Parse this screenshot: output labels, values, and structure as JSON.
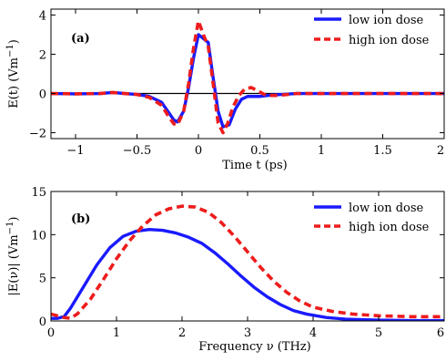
{
  "colors": {
    "low": "#1a1aff",
    "high": "#ee1c1c",
    "axis": "#000000",
    "background": "#ffffff"
  },
  "chart_data": [
    {
      "type": "line",
      "panel_label": "(a)",
      "xlabel": "Time t (ps)",
      "ylabel": "E(t) (Vm",
      "ylabel_sup": "−1",
      "ylabel_close": ")",
      "xlim": [
        -1.2,
        2.0
      ],
      "ylim": [
        -2.3,
        4.3
      ],
      "xticks": [
        -1,
        -0.5,
        0,
        0.5,
        1,
        1.5,
        2
      ],
      "xtick_labels": [
        "−1",
        "−0.5",
        "0",
        "0.5",
        "1",
        "1.5",
        "2"
      ],
      "yticks": [
        -2,
        0,
        2,
        4
      ],
      "ytick_labels": [
        "−2",
        "0",
        "2",
        "4"
      ],
      "zero_line": true,
      "grid": false,
      "legend_position": "top-right",
      "series": [
        {
          "name": "low ion dose",
          "color": "#1a1aff",
          "style": "solid",
          "x": [
            -1.2,
            -1.0,
            -0.8,
            -0.7,
            -0.6,
            -0.5,
            -0.4,
            -0.3,
            -0.25,
            -0.2,
            -0.17,
            -0.12,
            -0.08,
            -0.04,
            0.0,
            0.04,
            0.08,
            0.12,
            0.16,
            0.2,
            0.25,
            0.3,
            0.35,
            0.4,
            0.5,
            0.6,
            0.8,
            1.0,
            1.2,
            1.5,
            1.8,
            2.0
          ],
          "y": [
            0.0,
            -0.02,
            0.0,
            0.05,
            0.0,
            -0.05,
            -0.15,
            -0.45,
            -0.9,
            -1.35,
            -1.45,
            -0.9,
            0.3,
            1.8,
            3.0,
            2.8,
            2.6,
            0.8,
            -0.9,
            -1.7,
            -1.6,
            -0.8,
            -0.3,
            -0.15,
            -0.15,
            -0.08,
            0.0,
            0.0,
            0.0,
            0.0,
            0.0,
            0.0
          ]
        },
        {
          "name": "high ion dose",
          "color": "#ee1c1c",
          "style": "dashed",
          "x": [
            -1.2,
            -1.0,
            -0.8,
            -0.7,
            -0.6,
            -0.5,
            -0.4,
            -0.3,
            -0.25,
            -0.2,
            -0.17,
            -0.12,
            -0.08,
            -0.04,
            0.0,
            0.04,
            0.08,
            0.12,
            0.16,
            0.2,
            0.24,
            0.28,
            0.33,
            0.38,
            0.43,
            0.48,
            0.55,
            0.65,
            0.8,
            1.0,
            1.2,
            1.5,
            1.8,
            2.0
          ],
          "y": [
            0.0,
            -0.02,
            0.0,
            0.05,
            0.0,
            -0.05,
            -0.2,
            -0.6,
            -1.1,
            -1.55,
            -1.6,
            -0.9,
            0.5,
            2.3,
            3.7,
            3.0,
            2.4,
            0.5,
            -1.5,
            -2.0,
            -1.5,
            -0.7,
            -0.1,
            0.25,
            0.3,
            0.15,
            -0.1,
            -0.1,
            0.0,
            0.0,
            0.0,
            0.0,
            0.0,
            0.0
          ]
        }
      ]
    },
    {
      "type": "line",
      "panel_label": "(b)",
      "xlabel": "Frequency ν (THz)",
      "ylabel": "|E(ν)| (Vm",
      "ylabel_sup": "−1",
      "ylabel_close": ")",
      "xlim": [
        0,
        6
      ],
      "ylim": [
        0,
        15
      ],
      "xticks": [
        0,
        1,
        2,
        3,
        4,
        5,
        6
      ],
      "xtick_labels": [
        "0",
        "1",
        "2",
        "3",
        "4",
        "5",
        "6"
      ],
      "yticks": [
        0,
        5,
        10,
        15
      ],
      "ytick_labels": [
        "0",
        "5",
        "10",
        "15"
      ],
      "zero_line": false,
      "grid": false,
      "legend_position": "top-right",
      "series": [
        {
          "name": "low ion dose",
          "color": "#1a1aff",
          "style": "solid",
          "x": [
            0.0,
            0.1,
            0.2,
            0.3,
            0.5,
            0.7,
            0.9,
            1.1,
            1.3,
            1.5,
            1.7,
            1.9,
            2.1,
            2.3,
            2.5,
            2.7,
            2.9,
            3.1,
            3.3,
            3.5,
            3.7,
            3.9,
            4.2,
            4.5,
            5.0,
            5.5,
            6.0
          ],
          "y": [
            0.3,
            0.3,
            0.5,
            1.5,
            4.0,
            6.5,
            8.5,
            9.8,
            10.4,
            10.6,
            10.5,
            10.2,
            9.7,
            9.0,
            7.9,
            6.6,
            5.2,
            3.9,
            2.8,
            1.9,
            1.2,
            0.8,
            0.4,
            0.2,
            0.1,
            0.05,
            0.05
          ]
        },
        {
          "name": "high ion dose",
          "color": "#ee1c1c",
          "style": "dashed",
          "x": [
            0.0,
            0.1,
            0.2,
            0.3,
            0.4,
            0.6,
            0.8,
            1.0,
            1.2,
            1.4,
            1.6,
            1.8,
            2.0,
            2.2,
            2.4,
            2.6,
            2.8,
            3.0,
            3.2,
            3.4,
            3.6,
            3.8,
            4.0,
            4.3,
            4.6,
            5.0,
            5.5,
            6.0
          ],
          "y": [
            0.8,
            0.6,
            0.4,
            0.3,
            0.8,
            2.5,
            4.8,
            7.2,
            9.3,
            11.0,
            12.3,
            13.0,
            13.3,
            13.2,
            12.6,
            11.4,
            9.8,
            8.0,
            6.2,
            4.6,
            3.3,
            2.3,
            1.6,
            1.1,
            0.8,
            0.6,
            0.5,
            0.5
          ]
        }
      ]
    }
  ]
}
